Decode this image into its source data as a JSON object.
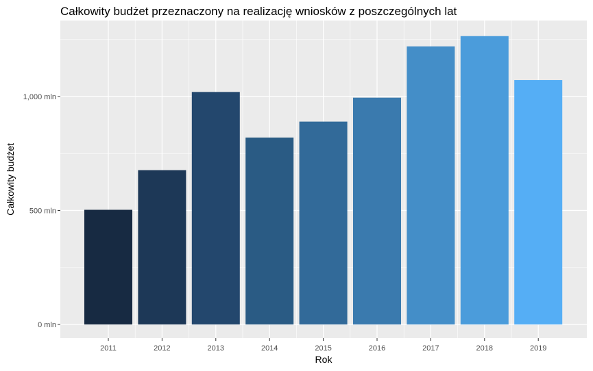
{
  "chart_data": {
    "type": "bar",
    "title": "Całkowity budżet przeznaczony na realizację wniosków z poszczególnych lat",
    "xlabel": "Rok",
    "ylabel": "Całkowity budżet",
    "categories": [
      "2011",
      "2012",
      "2013",
      "2014",
      "2015",
      "2016",
      "2017",
      "2018",
      "2019"
    ],
    "values": [
      503,
      677,
      1020,
      820,
      890,
      995,
      1220,
      1265,
      1072
    ],
    "unit": "mln",
    "ylim": [
      0,
      1325
    ],
    "yticks": [
      {
        "value": 0,
        "label": "0 mln"
      },
      {
        "value": 500,
        "label": "500 mln"
      },
      {
        "value": 1000,
        "label": "1,000 mln"
      }
    ],
    "grid": true,
    "panel_background": "#ebebeb",
    "grid_color": "#ffffff",
    "bar_colors": [
      "#172a42",
      "#1d3857",
      "#23476d",
      "#2a5b84",
      "#326a99",
      "#3a7aae",
      "#448ec8",
      "#4b9cdb",
      "#55aef5"
    ]
  }
}
